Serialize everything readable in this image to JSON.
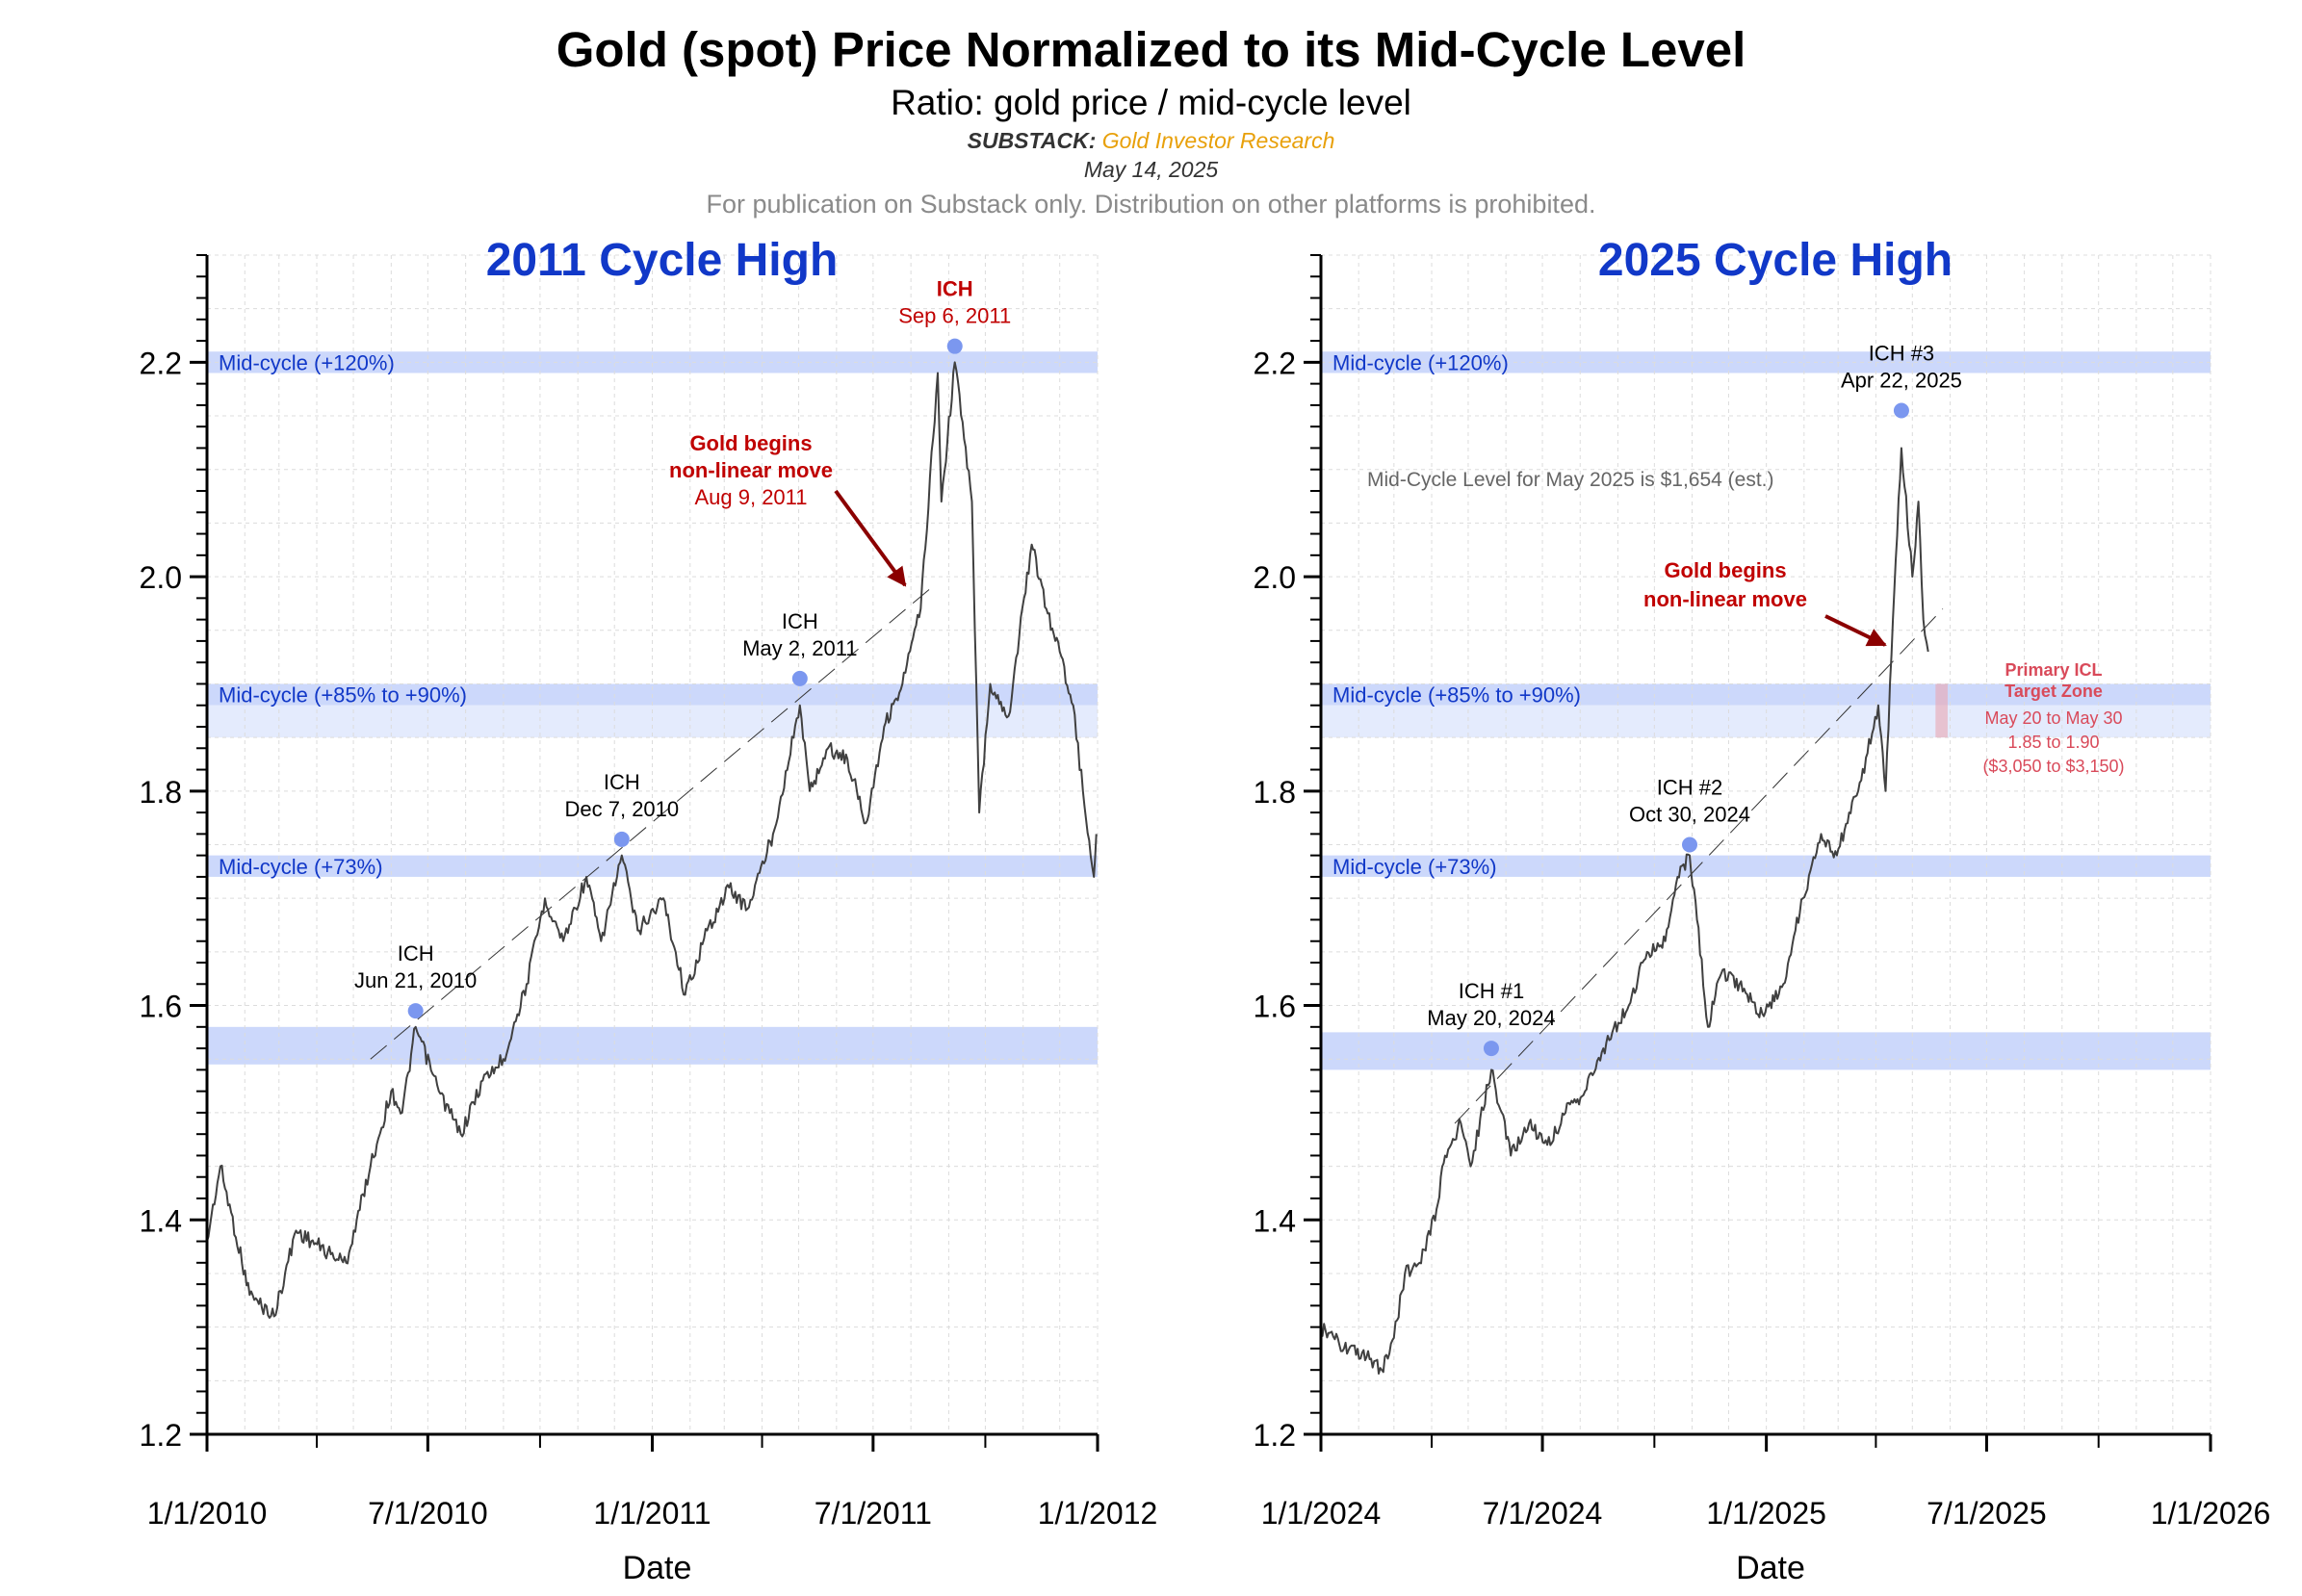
{
  "header": {
    "title": "Gold (spot) Price Normalized to its Mid-Cycle Level",
    "subtitle": "Ratio: gold price / mid-cycle level",
    "source_label": "SUBSTACK:",
    "source_name": "Gold Investor Research",
    "date": "May 14, 2025",
    "notice": "For publication on Substack only. Distribution on other platforms is prohibited."
  },
  "colors": {
    "title_blue": "#1138c8",
    "band": "#ccd8fb",
    "band_light": "#e4ebfd",
    "series": "#404040",
    "ich_marker": "#7b97ef",
    "red_annotation": "#c00000",
    "arrow": "#8b0000",
    "target_zone": "#e9a6b3",
    "target_text": "#d94a5a"
  },
  "chart_data": [
    {
      "type": "line",
      "panel_title": "2011 Cycle High",
      "xlabel": "Date",
      "ylabel": "",
      "ylim": [
        1.2,
        2.3
      ],
      "xlim": [
        "2010-01-01",
        "2012-01-01"
      ],
      "x_tick_labels": [
        "1/1/2010",
        "7/1/2010",
        "1/1/2011",
        "7/1/2011",
        "1/1/2012"
      ],
      "y_tick_labels": [
        "1.2",
        "1.4",
        "1.6",
        "1.8",
        "2.0",
        "2.2"
      ],
      "grid": true,
      "bands": [
        {
          "label": "Mid-cycle (+120%)",
          "from": 2.19,
          "to": 2.21,
          "shade": "dark"
        },
        {
          "label": "Mid-cycle (+85% to +90%)",
          "from": 1.88,
          "to": 1.9,
          "shade": "dark"
        },
        {
          "label": "",
          "from": 1.85,
          "to": 1.88,
          "shade": "light"
        },
        {
          "label": "Mid-cycle (+73%)",
          "from": 1.72,
          "to": 1.74,
          "shade": "dark"
        },
        {
          "label": "",
          "from": 1.545,
          "to": 1.58,
          "shade": "dark"
        }
      ],
      "series_points": [
        [
          "2010-01-01",
          1.38
        ],
        [
          "2010-01-12",
          1.45
        ],
        [
          "2010-02-05",
          1.33
        ],
        [
          "2010-02-25",
          1.31
        ],
        [
          "2010-03-15",
          1.39
        ],
        [
          "2010-04-10",
          1.37
        ],
        [
          "2010-04-25",
          1.36
        ],
        [
          "2010-05-15",
          1.45
        ],
        [
          "2010-06-01",
          1.52
        ],
        [
          "2010-06-10",
          1.5
        ],
        [
          "2010-06-21",
          1.58
        ],
        [
          "2010-07-10",
          1.52
        ],
        [
          "2010-07-28",
          1.48
        ],
        [
          "2010-08-15",
          1.53
        ],
        [
          "2010-09-01",
          1.55
        ],
        [
          "2010-09-20",
          1.62
        ],
        [
          "2010-10-05",
          1.7
        ],
        [
          "2010-10-20",
          1.66
        ],
        [
          "2010-11-08",
          1.72
        ],
        [
          "2010-11-20",
          1.66
        ],
        [
          "2010-12-07",
          1.74
        ],
        [
          "2010-12-20",
          1.67
        ],
        [
          "2011-01-10",
          1.7
        ],
        [
          "2011-01-28",
          1.61
        ],
        [
          "2011-02-15",
          1.67
        ],
        [
          "2011-03-05",
          1.71
        ],
        [
          "2011-03-20",
          1.69
        ],
        [
          "2011-04-10",
          1.76
        ],
        [
          "2011-05-02",
          1.88
        ],
        [
          "2011-05-10",
          1.8
        ],
        [
          "2011-05-25",
          1.84
        ],
        [
          "2011-06-10",
          1.83
        ],
        [
          "2011-06-25",
          1.77
        ],
        [
          "2011-07-10",
          1.86
        ],
        [
          "2011-07-25",
          1.9
        ],
        [
          "2011-08-09",
          1.97
        ],
        [
          "2011-08-23",
          2.19
        ],
        [
          "2011-08-26",
          2.07
        ],
        [
          "2011-09-06",
          2.2
        ],
        [
          "2011-09-20",
          2.07
        ],
        [
          "2011-09-26",
          1.78
        ],
        [
          "2011-10-05",
          1.9
        ],
        [
          "2011-10-20",
          1.87
        ],
        [
          "2011-11-08",
          2.03
        ],
        [
          "2011-11-20",
          1.97
        ],
        [
          "2011-12-01",
          1.93
        ],
        [
          "2011-12-12",
          1.88
        ],
        [
          "2011-12-20",
          1.8
        ],
        [
          "2011-12-29",
          1.72
        ],
        [
          "2011-12-31",
          1.76
        ]
      ],
      "trendline": [
        [
          "2010-05-15",
          1.55
        ],
        [
          "2011-08-18",
          1.99
        ]
      ],
      "annotations": [
        {
          "line1": "ICH",
          "line2": "Jun 21, 2010",
          "x": "2010-06-21",
          "y": 1.595,
          "marker": true,
          "color": "black"
        },
        {
          "line1": "ICH",
          "line2": "Dec 7, 2010",
          "x": "2010-12-07",
          "y": 1.755,
          "marker": true,
          "color": "black"
        },
        {
          "line1": "ICH",
          "line2": "May 2, 2011",
          "x": "2011-05-02",
          "y": 1.905,
          "marker": true,
          "color": "black"
        },
        {
          "line1": "ICH",
          "line2": "Sep 6, 2011",
          "x": "2011-09-06",
          "y": 2.215,
          "marker": true,
          "color": "red"
        }
      ],
      "callout": {
        "line1": "Gold begins",
        "line2": "non-linear move",
        "line3": "Aug 9, 2011"
      }
    },
    {
      "type": "line",
      "panel_title": "2025 Cycle High",
      "xlabel": "Date",
      "ylabel": "",
      "ylim": [
        1.2,
        2.3
      ],
      "xlim": [
        "2024-01-01",
        "2026-01-01"
      ],
      "x_tick_labels": [
        "1/1/2024",
        "7/1/2024",
        "1/1/2025",
        "7/1/2025",
        "1/1/2026"
      ],
      "y_tick_labels": [
        "1.2",
        "1.4",
        "1.6",
        "1.8",
        "2.0",
        "2.2"
      ],
      "grid": true,
      "bands": [
        {
          "label": "Mid-cycle (+120%)",
          "from": 2.19,
          "to": 2.21,
          "shade": "dark"
        },
        {
          "label": "Mid-cycle (+85% to +90%)",
          "from": 1.88,
          "to": 1.9,
          "shade": "dark"
        },
        {
          "label": "",
          "from": 1.85,
          "to": 1.88,
          "shade": "light"
        },
        {
          "label": "Mid-cycle (+73%)",
          "from": 1.72,
          "to": 1.74,
          "shade": "dark"
        },
        {
          "label": "",
          "from": 1.54,
          "to": 1.575,
          "shade": "dark"
        }
      ],
      "series_points": [
        [
          "2024-01-01",
          1.3
        ],
        [
          "2024-01-20",
          1.28
        ],
        [
          "2024-02-10",
          1.27
        ],
        [
          "2024-02-20",
          1.26
        ],
        [
          "2024-03-01",
          1.29
        ],
        [
          "2024-03-10",
          1.35
        ],
        [
          "2024-03-22",
          1.36
        ],
        [
          "2024-04-05",
          1.41
        ],
        [
          "2024-04-12",
          1.46
        ],
        [
          "2024-04-25",
          1.49
        ],
        [
          "2024-05-03",
          1.45
        ],
        [
          "2024-05-20",
          1.54
        ],
        [
          "2024-06-05",
          1.46
        ],
        [
          "2024-06-20",
          1.49
        ],
        [
          "2024-07-05",
          1.47
        ],
        [
          "2024-07-20",
          1.5
        ],
        [
          "2024-08-05",
          1.52
        ],
        [
          "2024-08-20",
          1.56
        ],
        [
          "2024-09-10",
          1.6
        ],
        [
          "2024-09-25",
          1.65
        ],
        [
          "2024-10-10",
          1.66
        ],
        [
          "2024-10-20",
          1.72
        ],
        [
          "2024-10-30",
          1.74
        ],
        [
          "2024-11-05",
          1.68
        ],
        [
          "2024-11-14",
          1.58
        ],
        [
          "2024-11-25",
          1.63
        ],
        [
          "2024-12-10",
          1.62
        ],
        [
          "2024-12-30",
          1.59
        ],
        [
          "2025-01-15",
          1.62
        ],
        [
          "2025-01-31",
          1.7
        ],
        [
          "2025-02-15",
          1.76
        ],
        [
          "2025-02-28",
          1.74
        ],
        [
          "2025-03-10",
          1.78
        ],
        [
          "2025-03-20",
          1.81
        ],
        [
          "2025-04-03",
          1.88
        ],
        [
          "2025-04-09",
          1.8
        ],
        [
          "2025-04-15",
          1.96
        ],
        [
          "2025-04-22",
          2.12
        ],
        [
          "2025-05-01",
          2.0
        ],
        [
          "2025-05-06",
          2.07
        ],
        [
          "2025-05-10",
          1.96
        ],
        [
          "2025-05-14",
          1.93
        ]
      ],
      "trendline": [
        [
          "2024-04-20",
          1.49
        ],
        [
          "2025-05-26",
          1.97
        ]
      ],
      "annotations": [
        {
          "line1": "ICH #1",
          "line2": "May 20, 2024",
          "x": "2024-05-20",
          "y": 1.56,
          "marker": true,
          "color": "black"
        },
        {
          "line1": "ICH #2",
          "line2": "Oct 30, 2024",
          "x": "2024-10-30",
          "y": 1.75,
          "marker": true,
          "color": "black"
        },
        {
          "line1": "ICH #3",
          "line2": "Apr 22, 2025",
          "x": "2025-04-22",
          "y": 2.155,
          "marker": true,
          "color": "black"
        }
      ],
      "note": "Mid-Cycle Level for May 2025 is $1,654 (est.)",
      "callout": {
        "line1": "Gold begins",
        "line2": "non-linear move"
      },
      "target_zone": {
        "line1": "Primary ICL",
        "line2": "Target Zone",
        "line3": "May 20 to May 30",
        "line4": "1.85 to 1.90",
        "line5": "($3,050 to $3,150)",
        "x_from": "2025-05-20",
        "x_to": "2025-05-30",
        "y_from": 1.85,
        "y_to": 1.9
      }
    }
  ]
}
